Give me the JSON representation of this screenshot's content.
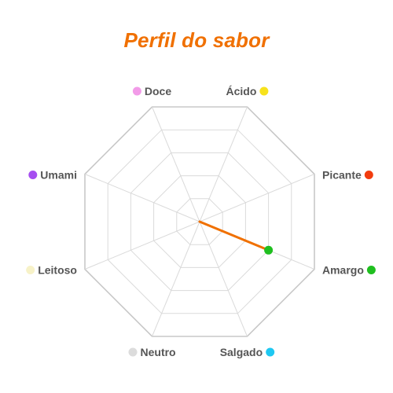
{
  "chart_data": {
    "type": "radar",
    "title": "Perfil do sabor",
    "axes": [
      {
        "label": "Doce",
        "color": "#f29be8"
      },
      {
        "label": "Ácido",
        "color": "#f7e21c"
      },
      {
        "label": "Picante",
        "color": "#f23c0e"
      },
      {
        "label": "Amargo",
        "color": "#1fbf1f"
      },
      {
        "label": "Salgado",
        "color": "#1ec8f2"
      },
      {
        "label": "Neutro",
        "color": "#dcdcdc"
      },
      {
        "label": "Leitoso",
        "color": "#f7f2c8"
      },
      {
        "label": "Umami",
        "color": "#a64ef0"
      }
    ],
    "range": [
      0,
      5
    ],
    "rings": 5,
    "grid": true,
    "series": [
      {
        "color": "#f07000",
        "values": [
          0,
          0,
          0,
          3,
          0,
          0,
          0,
          0
        ]
      }
    ],
    "highlight_point_color": "#1fbf1f"
  }
}
